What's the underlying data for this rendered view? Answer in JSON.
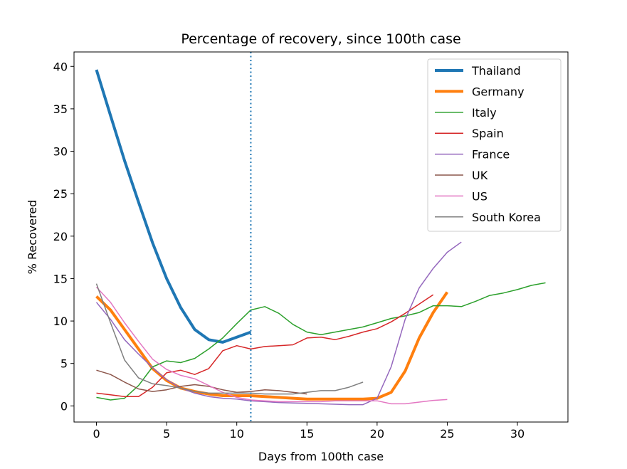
{
  "chart_data": {
    "type": "line",
    "title": "Percentage of recovery, since 100th case",
    "xlabel": "Days from 100th case",
    "ylabel": "% Recovered",
    "xlim": [
      -1.6,
      33.6
    ],
    "ylim": [
      -1.9,
      41.7
    ],
    "xticks": [
      0,
      5,
      10,
      15,
      20,
      25,
      30
    ],
    "yticks": [
      0,
      5,
      10,
      15,
      20,
      25,
      30,
      35,
      40
    ],
    "grid": false,
    "legend_position": "top-right",
    "vline": {
      "x": 11,
      "color": "#1f77b4",
      "style": "dotted"
    },
    "series": [
      {
        "name": "Thailand",
        "color": "#1f77b4",
        "width": 4,
        "x": [
          0,
          1,
          2,
          3,
          4,
          5,
          6,
          7,
          8,
          9,
          10,
          11
        ],
        "y": [
          39.6,
          34.2,
          28.9,
          24.0,
          19.2,
          15.0,
          11.6,
          9.0,
          7.8,
          7.5,
          8.1,
          8.7
        ]
      },
      {
        "name": "Germany",
        "color": "#ff7f0e",
        "width": 4,
        "x": [
          0,
          1,
          2,
          3,
          4,
          5,
          6,
          7,
          8,
          9,
          10,
          11,
          12,
          13,
          14,
          15,
          16,
          17,
          18,
          19,
          20,
          21,
          22,
          23,
          24,
          25
        ],
        "y": [
          12.9,
          11.3,
          9.0,
          6.7,
          4.4,
          3.0,
          2.1,
          1.7,
          1.4,
          1.2,
          1.2,
          1.2,
          1.1,
          1.0,
          0.9,
          0.8,
          0.8,
          0.8,
          0.8,
          0.8,
          0.9,
          1.6,
          4.1,
          8.0,
          11.0,
          13.4
        ]
      },
      {
        "name": "Italy",
        "color": "#2ca02c",
        "width": 1.5,
        "x": [
          0,
          1,
          2,
          3,
          4,
          5,
          6,
          7,
          8,
          9,
          10,
          11,
          12,
          13,
          14,
          15,
          16,
          17,
          18,
          19,
          20,
          21,
          22,
          23,
          24,
          25,
          26,
          27,
          28,
          29,
          30,
          31,
          32
        ],
        "y": [
          1.0,
          0.7,
          0.9,
          2.4,
          4.6,
          5.3,
          5.1,
          5.6,
          6.7,
          8.0,
          9.7,
          11.3,
          11.7,
          10.9,
          9.6,
          8.7,
          8.4,
          8.7,
          9.0,
          9.3,
          9.8,
          10.3,
          10.6,
          11.0,
          11.8,
          11.8,
          11.7,
          12.3,
          13.0,
          13.3,
          13.7,
          14.2,
          14.5
        ]
      },
      {
        "name": "Spain",
        "color": "#d62728",
        "width": 1.5,
        "x": [
          0,
          1,
          2,
          3,
          4,
          5,
          6,
          7,
          8,
          9,
          10,
          11,
          12,
          13,
          14,
          15,
          16,
          17,
          18,
          19,
          20,
          21,
          22,
          23,
          24
        ],
        "y": [
          1.5,
          1.3,
          1.1,
          1.1,
          2.2,
          3.9,
          4.2,
          3.7,
          4.4,
          6.5,
          7.1,
          6.7,
          7.0,
          7.1,
          7.2,
          8.0,
          8.1,
          7.8,
          8.2,
          8.7,
          9.1,
          9.9,
          10.9,
          12.0,
          13.1
        ]
      },
      {
        "name": "France",
        "color": "#9467bd",
        "width": 1.5,
        "x": [
          0,
          1,
          2,
          3,
          4,
          5,
          6,
          7,
          8,
          9,
          10,
          11,
          12,
          13,
          14,
          15,
          16,
          17,
          18,
          19,
          20,
          21,
          22,
          23,
          24,
          25,
          26
        ],
        "y": [
          12.2,
          10.2,
          7.8,
          6.1,
          4.5,
          3.1,
          2.1,
          1.5,
          1.1,
          0.9,
          0.8,
          0.6,
          0.5,
          0.4,
          0.35,
          0.3,
          0.25,
          0.2,
          0.15,
          0.15,
          0.9,
          4.6,
          10.2,
          13.9,
          16.2,
          18.1,
          19.3
        ]
      },
      {
        "name": "UK",
        "color": "#8c564b",
        "width": 1.5,
        "x": [
          0,
          1,
          2,
          3,
          4,
          5,
          6,
          7,
          8,
          9,
          10,
          11,
          12,
          13,
          14,
          15
        ],
        "y": [
          4.2,
          3.7,
          2.8,
          2.0,
          1.7,
          1.9,
          2.3,
          2.5,
          2.3,
          1.9,
          1.6,
          1.7,
          1.9,
          1.8,
          1.6,
          1.4
        ]
      },
      {
        "name": "US",
        "color": "#e377c2",
        "width": 1.5,
        "x": [
          0,
          1,
          2,
          3,
          4,
          5,
          6,
          7,
          8,
          9,
          10,
          11,
          12,
          13,
          14,
          15,
          16,
          17,
          18,
          19,
          20,
          21,
          22,
          23,
          24,
          25
        ],
        "y": [
          14.0,
          12.2,
          9.8,
          7.6,
          5.5,
          4.3,
          3.6,
          3.2,
          2.4,
          1.6,
          1.0,
          0.7,
          0.6,
          0.5,
          0.5,
          0.5,
          0.5,
          0.6,
          0.6,
          0.6,
          0.6,
          0.25,
          0.25,
          0.45,
          0.65,
          0.75
        ]
      },
      {
        "name": "South Korea",
        "color": "#7f7f7f",
        "width": 1.5,
        "x": [
          0,
          1,
          2,
          3,
          4,
          5,
          6,
          7,
          8,
          9,
          10,
          11,
          12,
          13,
          14,
          15,
          16,
          17,
          18,
          19
        ],
        "y": [
          14.4,
          9.8,
          5.4,
          3.3,
          2.6,
          2.4,
          2.1,
          1.7,
          1.5,
          1.5,
          1.5,
          1.5,
          1.4,
          1.4,
          1.4,
          1.6,
          1.8,
          1.8,
          2.2,
          2.8
        ]
      }
    ]
  }
}
